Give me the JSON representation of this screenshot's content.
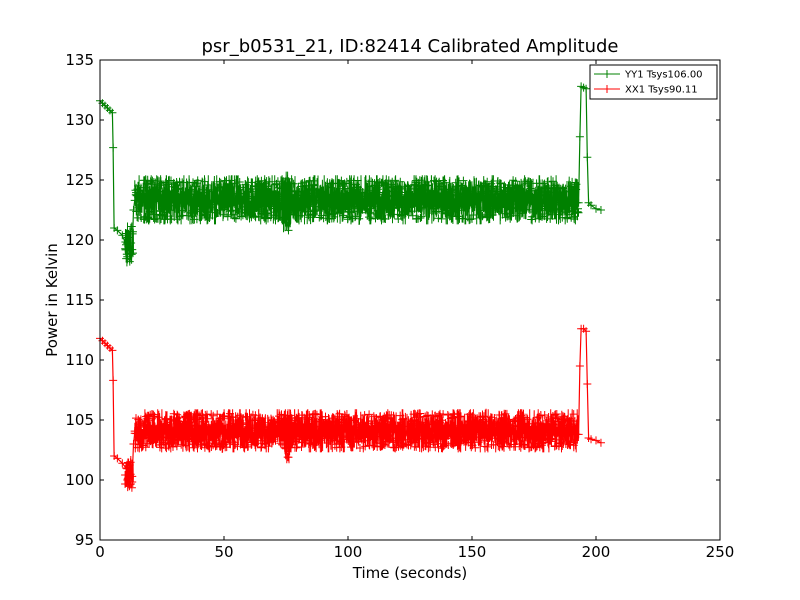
{
  "chart_data": {
    "type": "line",
    "title": "psr_b0531_21, ID:82414 Calibrated Amplitude",
    "xlabel": "Time (seconds)",
    "ylabel": "Power in Kelvin",
    "xlim": [
      0,
      250
    ],
    "ylim": [
      95,
      135
    ],
    "xticks": [
      0,
      50,
      100,
      150,
      200,
      250
    ],
    "yticks": [
      95,
      100,
      105,
      110,
      115,
      120,
      125,
      130,
      135
    ],
    "xtick_labels": [
      "0",
      "50",
      "100",
      "150",
      "200",
      "250"
    ],
    "ytick_labels": [
      "95",
      "100",
      "105",
      "110",
      "115",
      "120",
      "125",
      "130",
      "135"
    ],
    "grid": false,
    "legend_position": "top-right",
    "marker": "plus",
    "series": [
      {
        "name": "YY1 Tsys106.00",
        "color": "#008000",
        "points": [
          [
            0,
            131.6
          ],
          [
            1,
            131.4
          ],
          [
            2,
            131.2
          ],
          [
            3,
            131.0
          ],
          [
            4,
            130.8
          ],
          [
            5,
            130.6
          ],
          [
            5.3,
            127.7
          ],
          [
            5.7,
            121.0
          ],
          [
            7,
            120.8
          ],
          [
            9,
            120.4
          ],
          [
            10.5,
            119.6
          ],
          [
            11,
            118.6
          ],
          [
            12,
            118.2
          ],
          [
            13,
            119.2
          ],
          [
            13.5,
            122.5
          ],
          [
            14,
            123.3
          ],
          [
            17,
            123.2
          ],
          [
            20,
            123.3
          ],
          [
            25,
            123.2
          ],
          [
            30,
            123.3
          ],
          [
            40,
            123.2
          ],
          [
            50,
            123.3
          ],
          [
            60,
            123.2
          ],
          [
            70,
            123.3
          ],
          [
            74,
            123.8
          ],
          [
            75,
            122.0
          ],
          [
            76,
            120.8
          ],
          [
            77,
            123.2
          ],
          [
            80,
            123.2
          ],
          [
            90,
            123.3
          ],
          [
            100,
            123.3
          ],
          [
            110,
            123.4
          ],
          [
            120,
            123.3
          ],
          [
            130,
            123.3
          ],
          [
            140,
            123.4
          ],
          [
            150,
            123.5
          ],
          [
            160,
            123.3
          ],
          [
            170,
            123.2
          ],
          [
            180,
            123.4
          ],
          [
            190,
            123.3
          ],
          [
            193,
            123.1
          ],
          [
            193.5,
            128.6
          ],
          [
            194,
            132.8
          ],
          [
            195,
            132.7
          ],
          [
            196,
            132.6
          ],
          [
            196.5,
            126.9
          ],
          [
            197,
            123.1
          ],
          [
            198,
            122.9
          ],
          [
            200,
            122.6
          ],
          [
            202,
            122.5
          ]
        ],
        "noise_ranges": [
          [
            14,
            193,
            121.3,
            125.4
          ],
          [
            10,
            13.5,
            117.8,
            121.5
          ],
          [
            74,
            77,
            120.3,
            125.7
          ]
        ]
      },
      {
        "name": "XX1 Tsys90.11",
        "color": "#ff0000",
        "points": [
          [
            0,
            111.8
          ],
          [
            1,
            111.6
          ],
          [
            2,
            111.4
          ],
          [
            3,
            111.2
          ],
          [
            4,
            111.0
          ],
          [
            5,
            110.8
          ],
          [
            5.3,
            108.3
          ],
          [
            5.7,
            102.0
          ],
          [
            7,
            101.8
          ],
          [
            9,
            101.4
          ],
          [
            10.5,
            101.0
          ],
          [
            11,
            100.0
          ],
          [
            12,
            99.6
          ],
          [
            13,
            100.3
          ],
          [
            13.5,
            103.0
          ],
          [
            14,
            103.9
          ],
          [
            20,
            104.0
          ],
          [
            30,
            103.9
          ],
          [
            40,
            104.0
          ],
          [
            50,
            104.0
          ],
          [
            60,
            103.9
          ],
          [
            70,
            104.0
          ],
          [
            74,
            104.2
          ],
          [
            75,
            102.6
          ],
          [
            76,
            101.9
          ],
          [
            77,
            103.9
          ],
          [
            80,
            104.0
          ],
          [
            90,
            103.9
          ],
          [
            100,
            104.0
          ],
          [
            110,
            104.1
          ],
          [
            120,
            104.0
          ],
          [
            130,
            104.0
          ],
          [
            140,
            104.1
          ],
          [
            150,
            104.0
          ],
          [
            160,
            104.0
          ],
          [
            170,
            103.9
          ],
          [
            180,
            104.0
          ],
          [
            190,
            103.9
          ],
          [
            193,
            103.8
          ],
          [
            193.5,
            109.5
          ],
          [
            194,
            112.6
          ],
          [
            195,
            112.6
          ],
          [
            196,
            112.4
          ],
          [
            196.5,
            108.0
          ],
          [
            197,
            103.5
          ],
          [
            198,
            103.4
          ],
          [
            200,
            103.3
          ],
          [
            202,
            103.1
          ]
        ],
        "noise_ranges": [
          [
            14,
            193,
            102.3,
            105.9
          ],
          [
            10,
            13.5,
            99.0,
            102.0
          ],
          [
            74,
            77,
            101.4,
            106.0
          ]
        ]
      }
    ]
  }
}
